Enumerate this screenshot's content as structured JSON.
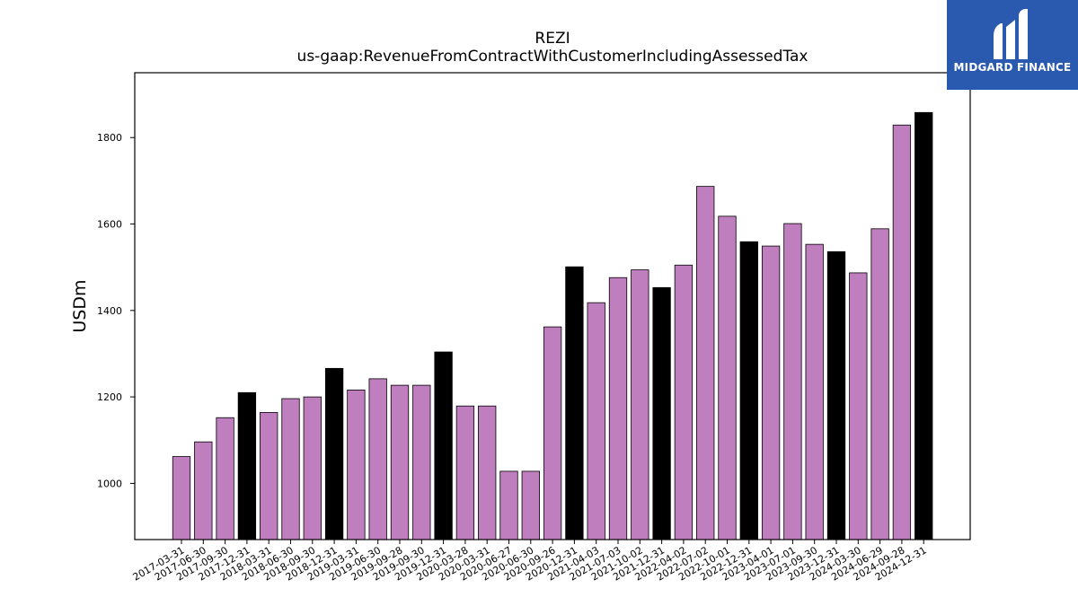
{
  "chart_data": {
    "type": "bar",
    "title": "REZI",
    "subtitle": "us-gaap:RevenueFromContractWithCustomerIncludingAssessedTax",
    "xlabel": "",
    "ylabel": "USDm",
    "ylim": [
      870,
      1950
    ],
    "yticks": [
      1000,
      1200,
      1400,
      1600,
      1800
    ],
    "grid": false,
    "categories": [
      "2017-03-31",
      "2017-06-30",
      "2017-09-30",
      "2017-12-31",
      "2018-03-31",
      "2018-06-30",
      "2018-09-30",
      "2018-12-31",
      "2019-03-31",
      "2019-06-30",
      "2019-09-28",
      "2019-09-30",
      "2019-12-31",
      "2020-03-28",
      "2020-03-31",
      "2020-06-27",
      "2020-06-30",
      "2020-09-26",
      "2020-12-31",
      "2021-04-03",
      "2021-07-03",
      "2021-10-02",
      "2021-12-31",
      "2022-04-02",
      "2022-07-02",
      "2022-10-01",
      "2022-12-31",
      "2023-04-01",
      "2023-07-01",
      "2023-09-30",
      "2023-12-31",
      "2024-03-30",
      "2024-06-29",
      "2024-09-28",
      "2024-12-31"
    ],
    "values": [
      1062,
      1096,
      1152,
      1210,
      1164,
      1196,
      1200,
      1266,
      1216,
      1242,
      1227,
      1227,
      1304,
      1179,
      1179,
      1028,
      1028,
      1362,
      1501,
      1418,
      1476,
      1494,
      1453,
      1505,
      1687,
      1618,
      1559,
      1549,
      1601,
      1553,
      1536,
      1487,
      1589,
      1829,
      1858
    ],
    "year_end": [
      false,
      false,
      false,
      true,
      false,
      false,
      false,
      true,
      false,
      false,
      false,
      false,
      true,
      false,
      false,
      false,
      false,
      false,
      true,
      false,
      false,
      false,
      true,
      false,
      false,
      false,
      true,
      false,
      false,
      false,
      true,
      false,
      false,
      false,
      true
    ],
    "colors": {
      "quarter": "#bf7fbf",
      "year_end": "#000000",
      "edge": "#000000"
    }
  },
  "logo": {
    "text": "MIDGARD FINANCE",
    "background": "#2a59b0"
  }
}
